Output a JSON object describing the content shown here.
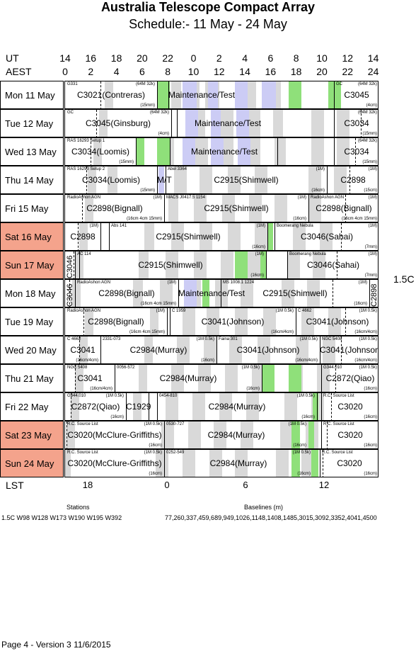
{
  "title": "Australia Telescope Compact Array",
  "subtitle": "Schedule:- 11 May - 24 May",
  "axes": {
    "ut_label": "UT",
    "aest_label": "AEST",
    "lst_label": "LST",
    "ut_ticks": [
      "14",
      "16",
      "18",
      "20",
      "22",
      "0",
      "2",
      "4",
      "6",
      "8",
      "10",
      "12",
      "14"
    ],
    "aest_ticks": [
      "0",
      "2",
      "4",
      "6",
      "8",
      "10",
      "12",
      "14",
      "16",
      "18",
      "20",
      "22",
      "24"
    ],
    "lst_ticks": [
      "18",
      "0",
      "6",
      "12"
    ]
  },
  "config": "1.5C",
  "days": [
    {
      "label": "Mon 11 May",
      "weekend": false,
      "entries": [
        {
          "small_left": "G331",
          "small_right": "(64M 32k)",
          "main": "C3021(Contreras)",
          "sub": "(15mm)"
        },
        {
          "main": "Maintenance/Test"
        },
        {
          "small_left": "GC",
          "small_right": "(64M 32k)",
          "main": "C3045",
          "sub": "(4cm)"
        }
      ]
    },
    {
      "label": "Tue  12 May",
      "weekend": false,
      "entries": [
        {
          "small_left": "GC",
          "small_right": "(64M 32k)",
          "main": "C3045(Ginsburg)",
          "sub": "(4cm)"
        },
        {
          "main": "Maintenance/Test"
        },
        {
          "small_right": "(64M 32k)",
          "main": "C3034",
          "sub": "(15mm)"
        }
      ]
    },
    {
      "label": "Wed 13 May",
      "weekend": false,
      "entries": [
        {
          "small_left": "RAS 16293 Setup 1",
          "main": "C3034(Loomis)",
          "sub": "(15mm)"
        },
        {
          "main": "Maintenance/Test"
        },
        {
          "small_right": "(64M 32k)",
          "main": "C3034",
          "sub": "(15mm)"
        }
      ]
    },
    {
      "label": "Thu  14 May",
      "weekend": false,
      "entries": [
        {
          "small_left": "RAS 16293 Setup 2",
          "main": "C3034(Loomis)",
          "sub": "(15mm)"
        },
        {
          "main": "M/T"
        },
        {
          "small_left": "Abel 3364",
          "small_right": "(1M)",
          "main": "C2915(Shimwell)",
          "sub": "(16cm)"
        },
        {
          "small_right": "(1M)",
          "main": "C2898",
          "sub": "(15cm)"
        }
      ]
    },
    {
      "label": "Fri    15 May",
      "weekend": false,
      "entries": [
        {
          "small_left": "RadioAshon AGN",
          "small_right": "(1M)",
          "main": "C2898(Bignall)",
          "sub": "(16cm 4cm 15mm)"
        },
        {
          "small_left": "MACS J0417.5 1154",
          "small_right": "(1M)",
          "main": "C2915(Shimwell)",
          "sub": "(16cm)"
        },
        {
          "small_left": "RadioAshon AGN",
          "small_right": "(1M)",
          "main": "C2898(Bignall)",
          "sub": "(16cm 4cm 15mm)"
        }
      ]
    },
    {
      "label": "Sat   16 May",
      "weekend": true,
      "entries": [
        {
          "small_right": "(1M)",
          "main": "C2898",
          "sub": ""
        },
        {
          "small_left": "Abs 141",
          "small_right": "(1M)",
          "main": "C2915(Shimwell)",
          "sub": "(16cm)"
        },
        {
          "small_left": "Boomerang Nebula",
          "small_right": "(1M)",
          "main": "C3046(Sahai)",
          "sub": "(7mm)"
        }
      ]
    },
    {
      "label": "Sun  17 May",
      "weekend": true,
      "entries": [
        {
          "main": "C3046"
        },
        {
          "small_left": "AC 114",
          "small_right": "(1M)",
          "main": "C2915(Shimwell)",
          "sub": "(16cm)"
        },
        {
          "small_left": "Boomerang Nebula",
          "small_right": "(1M)",
          "main": "C3046(Sahai)",
          "sub": "(7mm)"
        }
      ]
    },
    {
      "label": "Mon 18 May",
      "weekend": false,
      "entries": [
        {
          "main": "C3046"
        },
        {
          "small_left": "RadioAshon AGN",
          "small_right": "(1M)",
          "main": "C2898(Bignall)",
          "sub": "(16cm 4cm 15mm)"
        },
        {
          "main": "Maintenance/Test"
        },
        {
          "small_left": "MS 1008.1 1224",
          "small_right": "(1M)",
          "main": "C2915(Shimwell)",
          "sub": "(16cm)"
        },
        {
          "main": "C2898"
        }
      ]
    },
    {
      "label": "Tue   19 May",
      "weekend": false,
      "entries": [
        {
          "small_left": "RadioAshon AGN",
          "small_right": "(1M)",
          "main": "C2898(Bignall)",
          "sub": "(16cm 4cm 15mm)"
        },
        {
          "small_left": "C 1959",
          "small_right": "(1M 0.5k)",
          "main": "C3041(Johnson)",
          "sub": "(16cm/4cm)"
        },
        {
          "small_left": "C 4662",
          "small_right": "(1M 0.5k)",
          "main": "C3041(Johnson)",
          "sub": "(16cm/4cm)"
        }
      ]
    },
    {
      "label": "Wed 20 May",
      "weekend": false,
      "entries": [
        {
          "small_left": "C 4662",
          "main": "C3041",
          "sub": "(16cm/4cm)"
        },
        {
          "small_left": "2331-073",
          "small_right": "(1M 0.5k)",
          "main": "C2984(Murray)",
          "sub": "(16cm)"
        },
        {
          "small_left": "Faina 301",
          "small_right": "(1M 0.5k)",
          "main": "C3041(Johnson)",
          "sub": "(16cm/4cm)"
        },
        {
          "small_left": "NGC 5408",
          "small_right": "(1M 0.5k)",
          "main": "C3041(Johnson)",
          "sub": "(16cm/4cm)"
        }
      ]
    },
    {
      "label": "Thu  21 May",
      "weekend": false,
      "entries": [
        {
          "small_left": "NGC 5408",
          "main": "C3041",
          "sub": "(16cm/4cm)"
        },
        {
          "small_left": "0056-572",
          "small_right": "(1M 0.5k)",
          "main": "C2984(Murray)",
          "sub": "(16cm)"
        },
        {
          "small_left": "G344.010",
          "small_right": "(1M 0.5k)",
          "main": "C2872(Qiao)",
          "sub": "(16cm)"
        }
      ]
    },
    {
      "label": "Fri    22 May",
      "weekend": false,
      "entries": [
        {
          "small_left": "G344.010",
          "small_right": "(1M 0.5k)",
          "main": "C2872(Qiao)",
          "sub": "(16cm)"
        },
        {
          "main": "C1929"
        },
        {
          "small_left": "0454-810",
          "small_right": "(1M 0.5k)",
          "main": "C2984(Murray)",
          "sub": "(16cm)"
        },
        {
          "small_left": "R.C. Source List",
          "main": "C3020",
          "sub": "(16cm)"
        }
      ]
    },
    {
      "label": "Sat   23 May",
      "weekend": true,
      "entries": [
        {
          "small_left": "R.C. Source List",
          "small_right": "(1M 0.5k)",
          "main": "C3020(McClure-Griffiths)",
          "sub": "(16cm)"
        },
        {
          "small_left": "0530-727",
          "small_right": "(1M 0.5k)",
          "main": "C2984(Murray)",
          "sub": "(16cm)"
        },
        {
          "small_left": "R.C. Source List",
          "main": "C3020",
          "sub": "(16cm)"
        }
      ]
    },
    {
      "label": "Sun  24 May",
      "weekend": true,
      "entries": [
        {
          "small_left": "R.C. Source List",
          "small_right": "(1M 0.5k)",
          "main": "C3020(McClure-Griffiths)",
          "sub": "(16cm)"
        },
        {
          "small_left": "0252-549",
          "small_right": "(1M 0.5k)",
          "main": "C2984(Murray)",
          "sub": "(16cm)"
        },
        {
          "small_left": "R.C. Source List",
          "main": "C3020",
          "sub": "(16cm)"
        }
      ]
    }
  ],
  "footer": {
    "stations_heading": "Stations",
    "stations": "1.5C    W98 W128 W173 W190 W195 W392",
    "baselines_heading": "Baselines (m)",
    "baselines": "77,260,337,459,689,949,1026,1148,1408,1485,3015,3092,3352,4041,4500",
    "page": "Page 4 - Version 3  11/6/2015"
  }
}
